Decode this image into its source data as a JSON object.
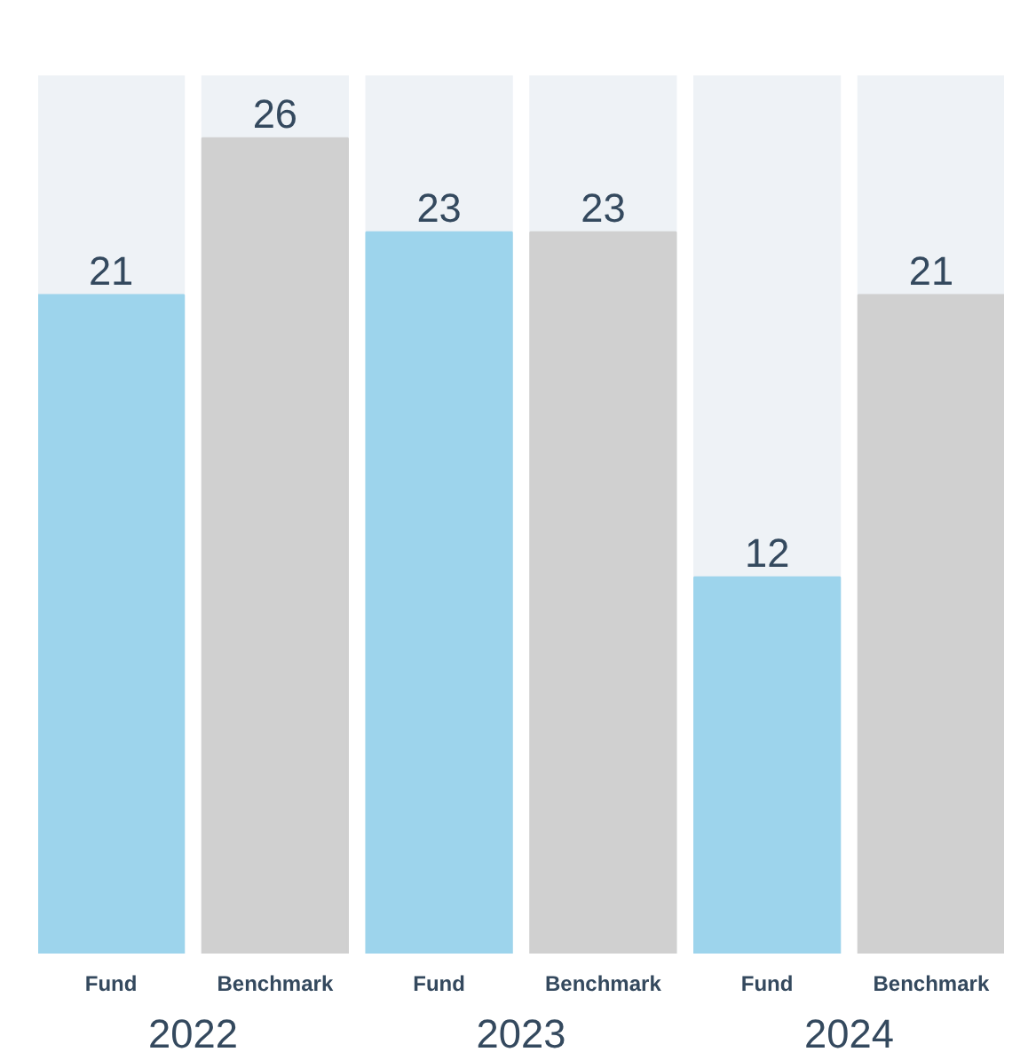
{
  "chart_data": {
    "type": "bar",
    "categories": [
      "2022",
      "2023",
      "2024"
    ],
    "series": [
      {
        "name": "Fund",
        "color": "#9dd4ec",
        "values": [
          21,
          23,
          12
        ]
      },
      {
        "name": "Benchmark",
        "color": "#d0d0d0",
        "values": [
          26,
          23,
          21
        ]
      }
    ],
    "ylim": [
      0,
      28
    ],
    "data_labels": true
  }
}
